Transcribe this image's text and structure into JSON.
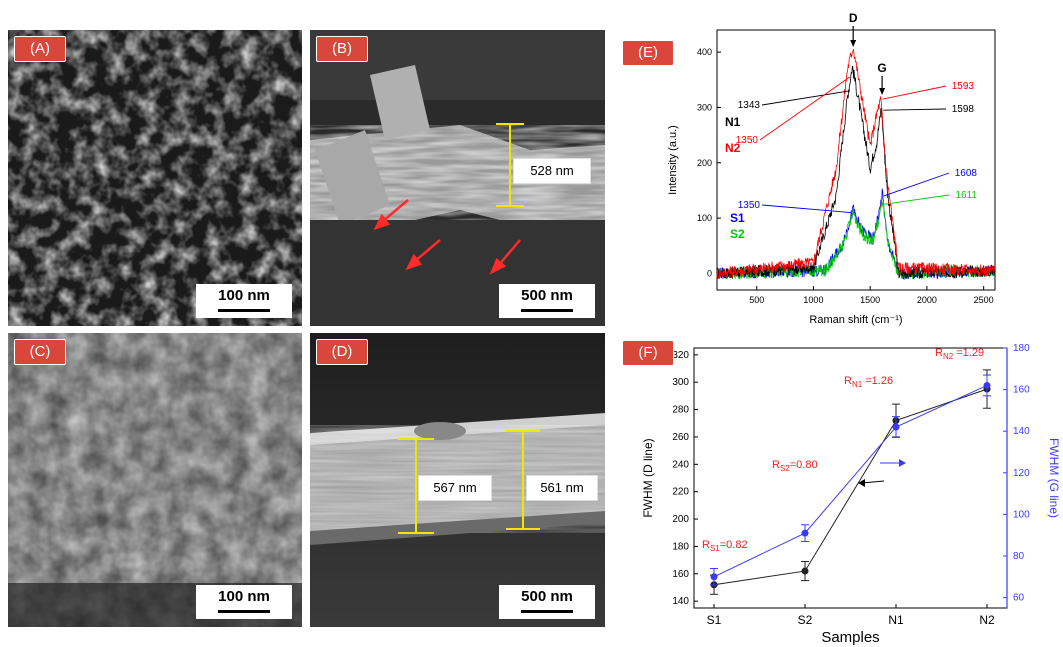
{
  "panels": {
    "A": {
      "tag": "(A)",
      "scale": "100 nm"
    },
    "B": {
      "tag": "(B)",
      "scale": "500 nm",
      "measure": "528 nm"
    },
    "C": {
      "tag": "(C)",
      "scale": "100 nm"
    },
    "D": {
      "tag": "(D)",
      "scale": "500 nm",
      "measure_left": "567 nm",
      "measure_right": "561 nm"
    },
    "E": {
      "tag": "(E)"
    },
    "F": {
      "tag": "(F)"
    }
  },
  "colors": {
    "tag_red": "#d9463b",
    "N1": "#000000",
    "N2": "#ff0000",
    "S1": "#0000ff",
    "S2": "#00cc00",
    "measure": "#f2e600",
    "fwhm_d": "#222222",
    "fwhm_g": "#3a3aff"
  },
  "chart_data": [
    {
      "type": "line",
      "panel": "E",
      "xlabel": "Raman shift (cm⁻¹)",
      "ylabel": "Intensity (a.u.)",
      "xlim": [
        150,
        2600
      ],
      "ylim": [
        -30,
        440
      ],
      "xticks": [
        500,
        1000,
        1500,
        2000,
        2500
      ],
      "yticks": [
        0,
        100,
        200,
        300,
        400
      ],
      "peak_labels": [
        "D",
        "G"
      ],
      "series": [
        {
          "name": "N1",
          "color": "#000000",
          "x": [
            150,
            1000,
            1200,
            1300,
            1343,
            1400,
            1500,
            1560,
            1598,
            1650,
            1750,
            2600
          ],
          "values": [
            0,
            10,
            140,
            320,
            375,
            310,
            190,
            240,
            300,
            150,
            0,
            5
          ]
        },
        {
          "name": "N2",
          "color": "#ff0000",
          "x": [
            150,
            1000,
            1200,
            1300,
            1350,
            1400,
            1500,
            1560,
            1593,
            1650,
            1750,
            2600
          ],
          "values": [
            0,
            20,
            190,
            370,
            410,
            350,
            230,
            290,
            315,
            170,
            10,
            5
          ]
        },
        {
          "name": "S1",
          "color": "#0000ff",
          "x": [
            150,
            1100,
            1250,
            1350,
            1420,
            1520,
            1580,
            1608,
            1650,
            1750,
            2600
          ],
          "values": [
            0,
            5,
            50,
            115,
            80,
            60,
            110,
            145,
            60,
            0,
            5
          ]
        },
        {
          "name": "S2",
          "color": "#00cc00",
          "x": [
            150,
            1100,
            1250,
            1350,
            1420,
            1520,
            1580,
            1611,
            1650,
            1750,
            2600
          ],
          "values": [
            0,
            5,
            45,
            110,
            75,
            55,
            100,
            135,
            55,
            0,
            5
          ]
        }
      ],
      "annotations": [
        {
          "text": "1343",
          "color": "#000000"
        },
        {
          "text": "1350",
          "color": "#ff0000"
        },
        {
          "text": "1593",
          "color": "#ff0000"
        },
        {
          "text": "1598",
          "color": "#000000"
        },
        {
          "text": "1350",
          "color": "#0000ff"
        },
        {
          "text": "1608",
          "color": "#0000ff"
        },
        {
          "text": "1611",
          "color": "#00cc00"
        }
      ],
      "legend_labels": [
        "N1",
        "N2",
        "S1",
        "S2"
      ]
    },
    {
      "type": "line",
      "panel": "F",
      "xlabel": "Samples",
      "ylabel": "FWHM (D line)",
      "ylabel_right": "FWHM (G line)",
      "categories": [
        "S1",
        "S2",
        "N1",
        "N2"
      ],
      "ylim": [
        135,
        325
      ],
      "yticks": [
        140,
        160,
        180,
        200,
        220,
        240,
        260,
        280,
        300,
        320
      ],
      "ylim_right": [
        55,
        180
      ],
      "yticks_right": [
        60,
        80,
        100,
        120,
        140,
        160,
        180
      ],
      "series": [
        {
          "axis": "left",
          "color": "#222222",
          "values": [
            152,
            162,
            272,
            295
          ],
          "errors": [
            7,
            7,
            12,
            14
          ]
        },
        {
          "axis": "right",
          "color": "#3a3aff",
          "values": [
            70,
            91,
            142,
            162
          ],
          "errors": [
            4,
            4,
            5,
            5
          ]
        }
      ],
      "ratios": [
        {
          "prefix": "R",
          "sub": "S1",
          "suffix": "=0.82"
        },
        {
          "prefix": "R",
          "sub": "S2",
          "suffix": "=0.80"
        },
        {
          "prefix": "R",
          "sub": "N1",
          "suffix": " =1.26"
        },
        {
          "prefix": "R",
          "sub": "N2",
          "suffix": " =1.29"
        }
      ]
    }
  ]
}
